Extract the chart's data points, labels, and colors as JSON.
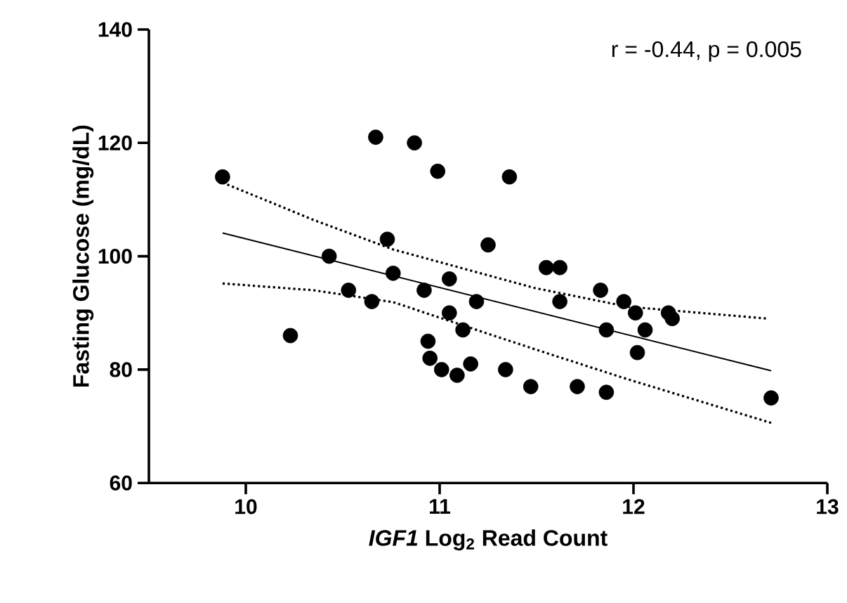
{
  "chart_data": {
    "type": "scatter",
    "xlabel": "*IGF1* Log$_{2}$ Read Count",
    "ylabel": "Fasting Glucose (mg/dL)",
    "xlim": [
      9.5,
      13
    ],
    "ylim": [
      60,
      140
    ],
    "xticks": [
      10,
      11,
      12,
      13
    ],
    "yticks": [
      60,
      80,
      100,
      120,
      140
    ],
    "grid": false,
    "annotations": [
      "r = -0.44, p = 0.005"
    ],
    "series": [
      {
        "color": "#000000",
        "marker": "circle",
        "x": [
          9.88,
          10.67,
          10.73,
          10.43,
          10.76,
          10.53,
          10.65,
          10.23,
          10.87,
          10.99,
          11.36,
          11.25,
          11.55,
          11.62,
          11.05,
          10.92,
          11.19,
          11.62,
          11.83,
          11.95,
          12.01,
          12.18,
          12.2,
          11.05,
          11.12,
          11.86,
          12.06,
          10.94,
          12.02,
          10.95,
          11.01,
          11.16,
          11.09,
          11.34,
          11.47,
          11.71,
          11.86,
          12.71
        ],
        "values": [
          114,
          121,
          103,
          100,
          97,
          94,
          92,
          86,
          120,
          115,
          114,
          102,
          98,
          98,
          96,
          94,
          92,
          92,
          94,
          92,
          90,
          90,
          89,
          90,
          87,
          87,
          87,
          85,
          83,
          82,
          80,
          81,
          79,
          80,
          77,
          77,
          76,
          75
        ]
      },
      {
        "type": "line",
        "color": "#000000",
        "line_style": "solid",
        "marker": "none",
        "x": [
          9.88,
          12.71
        ],
        "values": [
          104.1,
          79.8
        ]
      },
      {
        "type": "line",
        "color": "#000000",
        "line_style": "dotted",
        "marker": "none",
        "x": [
          9.88,
          10.35,
          10.76,
          11.49,
          11.97,
          12.69
        ],
        "values": [
          113,
          106.4,
          101.2,
          94.4,
          91.1,
          89
        ]
      },
      {
        "type": "line",
        "color": "#000000",
        "line_style": "dotted",
        "marker": "none",
        "x": [
          9.88,
          10.35,
          10.76,
          11.49,
          11.97,
          12.71
        ],
        "values": [
          95.2,
          94,
          91.9,
          83.6,
          78.3,
          70.6
        ]
      }
    ]
  }
}
